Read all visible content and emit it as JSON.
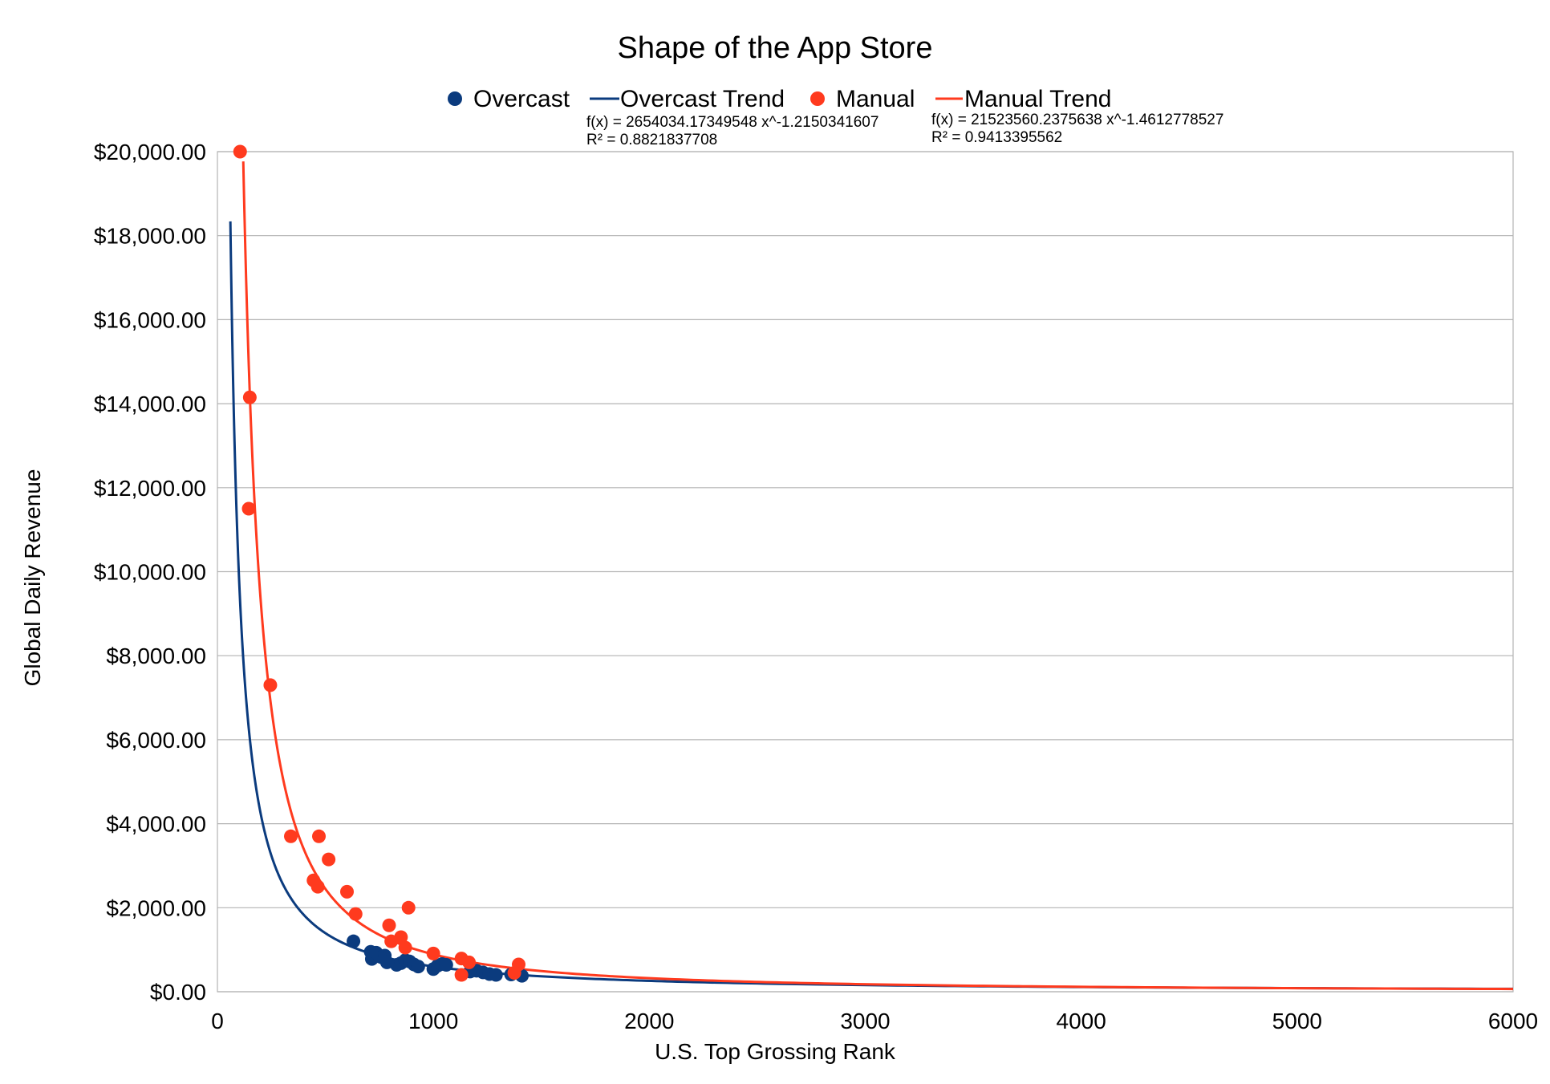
{
  "chart_data": {
    "type": "scatter",
    "title": "Shape of the App Store",
    "xlabel": "U.S. Top Grossing Rank",
    "ylabel": "Global Daily Revenue",
    "xlim": [
      0,
      6000
    ],
    "ylim": [
      0,
      20000
    ],
    "x_ticks": [
      0,
      1000,
      2000,
      3000,
      4000,
      5000,
      6000
    ],
    "y_ticks": [
      0,
      2000,
      4000,
      6000,
      8000,
      10000,
      12000,
      14000,
      16000,
      18000,
      20000
    ],
    "x_tick_labels": [
      "0",
      "1000",
      "2000",
      "3000",
      "4000",
      "5000",
      "6000"
    ],
    "y_tick_labels": [
      "$0.00",
      "$2,000.00",
      "$4,000.00",
      "$6,000.00",
      "$8,000.00",
      "$10,000.00",
      "$12,000.00",
      "$14,000.00",
      "$16,000.00",
      "$18,000.00",
      "$20,000.00"
    ],
    "grid": true,
    "legend_position": "top",
    "series": [
      {
        "name": "Overcast",
        "kind": "scatter",
        "color": "#0b3b7e",
        "points": [
          [
            630,
            1200
          ],
          [
            710,
            950
          ],
          [
            715,
            780
          ],
          [
            735,
            930
          ],
          [
            760,
            820
          ],
          [
            775,
            860
          ],
          [
            785,
            700
          ],
          [
            830,
            640
          ],
          [
            850,
            680
          ],
          [
            870,
            750
          ],
          [
            890,
            720
          ],
          [
            910,
            650
          ],
          [
            930,
            600
          ],
          [
            1000,
            540
          ],
          [
            1020,
            620
          ],
          [
            1040,
            660
          ],
          [
            1060,
            640
          ],
          [
            1170,
            480
          ],
          [
            1200,
            500
          ],
          [
            1230,
            460
          ],
          [
            1260,
            420
          ],
          [
            1290,
            400
          ],
          [
            1360,
            410
          ],
          [
            1410,
            380
          ]
        ]
      },
      {
        "name": "Overcast Trend",
        "kind": "trend",
        "color": "#0b3b7e",
        "coefficient": 2654034.17349548,
        "exponent": -1.2150341607,
        "x_start": 60,
        "x_end": 6000,
        "equation": "f(x) = 2654034.17349548 x^-1.2150341607",
        "r_squared": "R² = 0.8821837708"
      },
      {
        "name": "Manual",
        "kind": "scatter",
        "color": "#ff3a1e",
        "points": [
          [
            105,
            20000
          ],
          [
            150,
            14150
          ],
          [
            145,
            11500
          ],
          [
            245,
            7300
          ],
          [
            340,
            3700
          ],
          [
            470,
            3700
          ],
          [
            515,
            3150
          ],
          [
            445,
            2650
          ],
          [
            465,
            2500
          ],
          [
            600,
            2380
          ],
          [
            640,
            1850
          ],
          [
            885,
            2000
          ],
          [
            795,
            1580
          ],
          [
            850,
            1300
          ],
          [
            805,
            1200
          ],
          [
            870,
            1050
          ],
          [
            1000,
            910
          ],
          [
            1130,
            790
          ],
          [
            1165,
            700
          ],
          [
            1130,
            400
          ],
          [
            1395,
            650
          ],
          [
            1375,
            450
          ]
        ]
      },
      {
        "name": "Manual Trend",
        "kind": "trend",
        "color": "#ff3a1e",
        "coefficient": 21523560.2375638,
        "exponent": -1.4612778527,
        "x_start": 105,
        "x_end": 6000,
        "equation": "f(x) = 21523560.2375638 x^-1.4612778527",
        "r_squared": "R² = 0.9413395562"
      }
    ]
  }
}
